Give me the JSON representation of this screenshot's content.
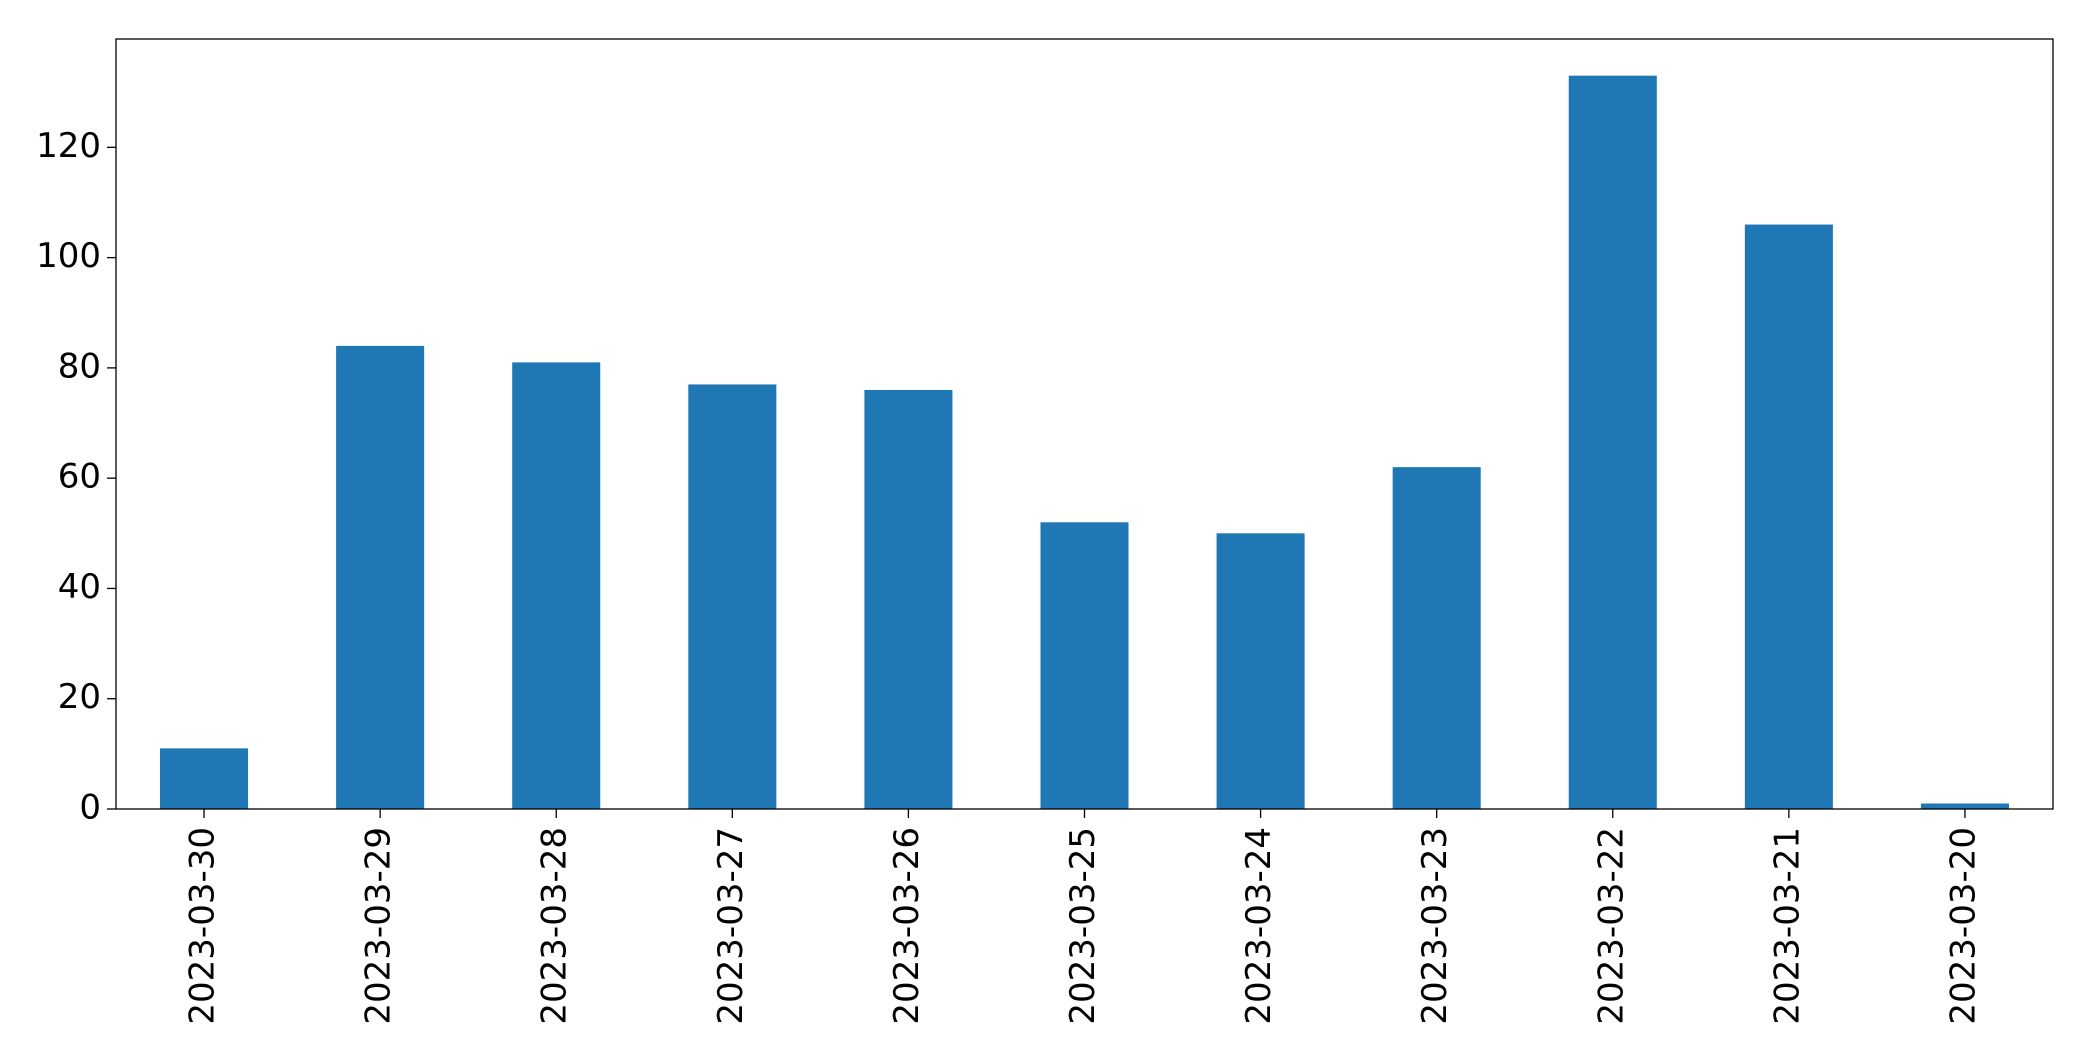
{
  "chart_data": {
    "type": "bar",
    "categories": [
      "2023-03-30",
      "2023-03-29",
      "2023-03-28",
      "2023-03-27",
      "2023-03-26",
      "2023-03-25",
      "2023-03-24",
      "2023-03-23",
      "2023-03-22",
      "2023-03-21",
      "2023-03-20"
    ],
    "values": [
      11,
      84,
      81,
      77,
      76,
      52,
      50,
      62,
      133,
      106,
      1
    ],
    "color": "#1f77b4",
    "ylim": [
      0,
      139.65
    ],
    "yticks": [
      0,
      20,
      40,
      60,
      80,
      100,
      120
    ],
    "grid": false
  }
}
